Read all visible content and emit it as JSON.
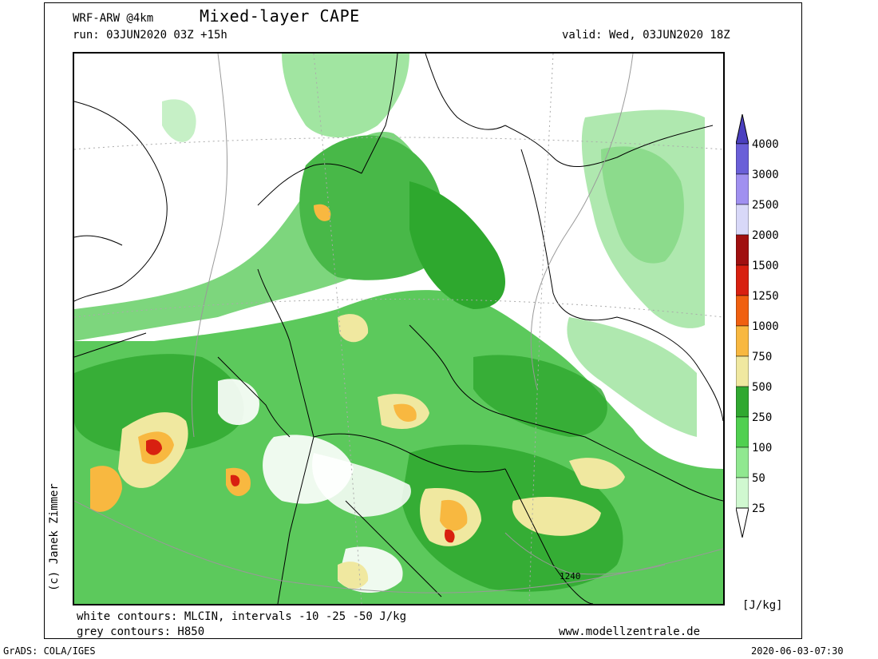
{
  "header": {
    "model": "WRF-ARW @4km",
    "title": "Mixed-layer CAPE",
    "run": "run: 03JUN2020 03Z +15h",
    "valid": "valid: Wed, 03JUN2020 18Z"
  },
  "credit": "(c) Janek Zimmer",
  "legend": {
    "levels": [
      "4000",
      "3000",
      "2500",
      "2000",
      "1500",
      "1250",
      "1000",
      "750",
      "500",
      "250",
      "100",
      "50",
      "25"
    ],
    "colors": [
      "#4a3fbf",
      "#6a5fd8",
      "#a090f0",
      "#d8d8f8",
      "#a01010",
      "#d82010",
      "#f06010",
      "#f8b840",
      "#f0e8a0",
      "#30a830",
      "#50d050",
      "#90e890",
      "#d0f8d0"
    ],
    "unit": "[J/kg]"
  },
  "notes": {
    "white_contours": "white contours: MLCIN, intervals -10 -25 -50 J/kg",
    "grey_contours": "grey contours: H850",
    "website": "www.modellzentrale.de"
  },
  "map": {
    "contour_label": "1240"
  },
  "footer": {
    "left": "GrADS: COLA/IGES",
    "right": "2020-06-03-07:30"
  }
}
